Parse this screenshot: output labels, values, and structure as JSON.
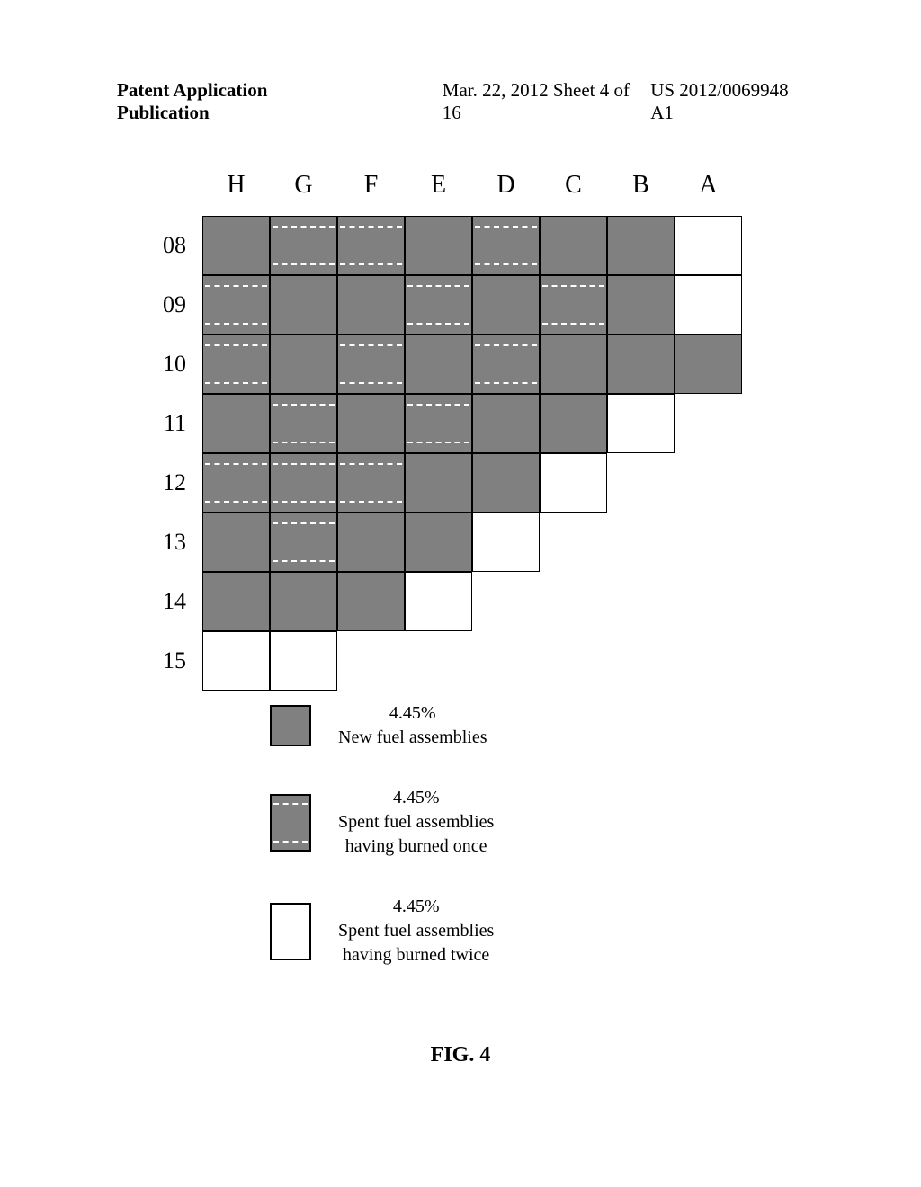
{
  "header": {
    "left": "Patent Application Publication",
    "center": "Mar. 22, 2012  Sheet 4 of 16",
    "right": "US 2012/0069948 A1"
  },
  "figure": {
    "label": "FIG. 4",
    "columns": [
      "H",
      "G",
      "F",
      "E",
      "D",
      "C",
      "B",
      "A"
    ],
    "rows": [
      "08",
      "09",
      "10",
      "11",
      "12",
      "13",
      "14",
      "15"
    ],
    "cell_types": {
      "new": "cell-new",
      "once": "cell-once",
      "twice": "cell-twice",
      "empty": "cell-empty"
    },
    "grid": [
      [
        "new",
        "once",
        "once",
        "new",
        "once",
        "new",
        "new",
        "twice"
      ],
      [
        "once",
        "new",
        "new",
        "once",
        "new",
        "once",
        "new",
        "twice"
      ],
      [
        "once",
        "new",
        "once",
        "new",
        "once",
        "new",
        "new",
        "new"
      ],
      [
        "new",
        "once",
        "new",
        "once",
        "new",
        "new",
        "twice",
        "empty"
      ],
      [
        "once",
        "once",
        "once",
        "new",
        "new",
        "twice",
        "empty",
        "empty"
      ],
      [
        "new",
        "once",
        "new",
        "new",
        "twice",
        "empty",
        "empty",
        "empty"
      ],
      [
        "new",
        "new",
        "new",
        "twice",
        "empty",
        "empty",
        "empty",
        "empty"
      ],
      [
        "twice",
        "twice",
        "empty",
        "empty",
        "empty",
        "empty",
        "empty",
        "empty"
      ]
    ],
    "colors": {
      "filled": "#808080",
      "empty": "#ffffff",
      "border": "#000000",
      "dash": "#ffffff"
    }
  },
  "legend": [
    {
      "swatch": "new",
      "pct": "4.45%",
      "line2": "New fuel assemblies",
      "line3": ""
    },
    {
      "swatch": "once",
      "pct": "4.45%",
      "line2": "Spent fuel assemblies",
      "line3": "having burned once"
    },
    {
      "swatch": "twice",
      "pct": "4.45%",
      "line2": "Spent fuel assemblies",
      "line3": "having burned twice"
    }
  ]
}
